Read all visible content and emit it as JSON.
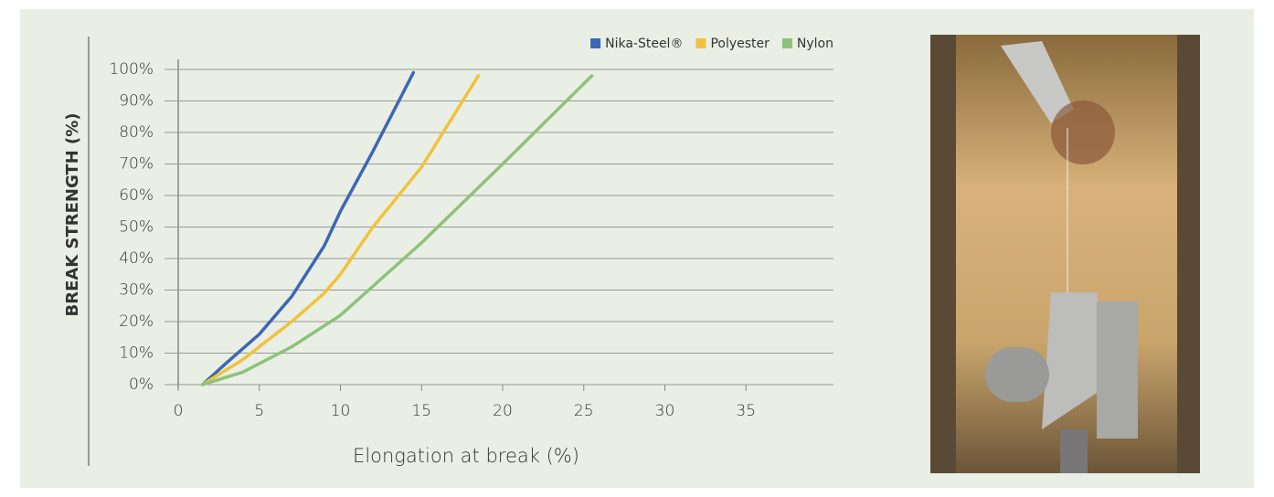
{
  "chart_data": {
    "type": "line",
    "y_label": "BREAK STRENGTH (%)",
    "x_label": "Elongation at break  (%)",
    "xlim": [
      0,
      40
    ],
    "xticks": [
      0,
      5,
      10,
      15,
      20,
      25,
      30,
      35
    ],
    "ylim": [
      0,
      100
    ],
    "yticks": [
      {
        "value": 0,
        "label": "0%"
      },
      {
        "value": 10,
        "label": "10%"
      },
      {
        "value": 20,
        "label": "20%"
      },
      {
        "value": 30,
        "label": "30%"
      },
      {
        "value": 40,
        "label": "40%"
      },
      {
        "value": 50,
        "label": "50%"
      },
      {
        "value": 60,
        "label": "60%"
      },
      {
        "value": 70,
        "label": "70%"
      },
      {
        "value": 80,
        "label": "80%"
      },
      {
        "value": 90,
        "label": "90%"
      },
      {
        "value": 100,
        "label": "100%"
      }
    ],
    "grid": true,
    "legend": "top-right",
    "series": [
      {
        "name": "Nika-Steel®",
        "color": "#3d67b5",
        "x": [
          1.5,
          3,
          5,
          7,
          9,
          10,
          12,
          14.5
        ],
        "values": [
          0,
          7,
          16,
          28,
          44,
          55,
          74,
          99
        ]
      },
      {
        "name": "Polyester",
        "color": "#f2c23e",
        "x": [
          1.5,
          4,
          7,
          9,
          10,
          12,
          15,
          18.5
        ],
        "values": [
          0,
          8,
          20,
          29,
          35,
          50,
          69,
          98
        ]
      },
      {
        "name": "Nylon",
        "color": "#8ec27a",
        "x": [
          1.5,
          4,
          7,
          10,
          15,
          20,
          25.5
        ],
        "values": [
          0,
          4,
          12,
          22,
          45,
          70,
          98
        ]
      }
    ]
  }
}
